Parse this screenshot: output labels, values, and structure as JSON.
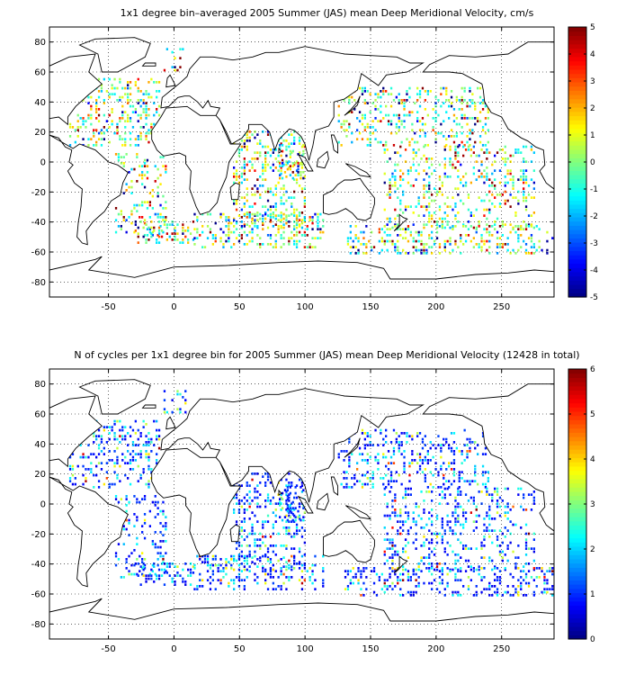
{
  "chart_data": [
    {
      "type": "heatmap",
      "title": "1x1 degree bin–averaged 2005 Summer (JAS) mean Deep Meridional Velocity, cm/s",
      "xlabel": "",
      "ylabel": "",
      "xlim": [
        -95,
        290
      ],
      "ylim": [
        -90,
        90
      ],
      "xticks": [
        -50,
        0,
        50,
        100,
        150,
        200,
        250
      ],
      "yticks": [
        -80,
        -60,
        -40,
        -20,
        0,
        20,
        40,
        60,
        80
      ],
      "grid": true,
      "colorbar": {
        "min": -5,
        "max": 5,
        "ticks": [
          -5,
          -4,
          -3,
          -2,
          -1,
          0,
          1,
          2,
          3,
          4,
          5
        ],
        "colormap": "jet"
      },
      "note": "scattered 1x1 degree bins over ocean basins; values mostly near 0 with extremes along Southern Ocean and western boundary currents"
    },
    {
      "type": "heatmap",
      "title": "N of cycles per 1x1 degree bin for 2005 Summer (JAS) mean Deep Meridional Velocity (12428 in total)",
      "xlabel": "",
      "ylabel": "",
      "xlim": [
        -95,
        290
      ],
      "ylim": [
        -90,
        90
      ],
      "xticks": [
        -50,
        0,
        50,
        100,
        150,
        200,
        250
      ],
      "yticks": [
        -80,
        -60,
        -40,
        -20,
        0,
        20,
        40,
        60,
        80
      ],
      "grid": true,
      "colorbar": {
        "min": 0,
        "max": 6,
        "ticks": [
          0,
          1,
          2,
          3,
          4,
          5,
          6
        ],
        "colormap": "jet"
      },
      "note": "most bins contain 1 cycle (blue), some 2–3 (cyan/green), few higher"
    }
  ]
}
